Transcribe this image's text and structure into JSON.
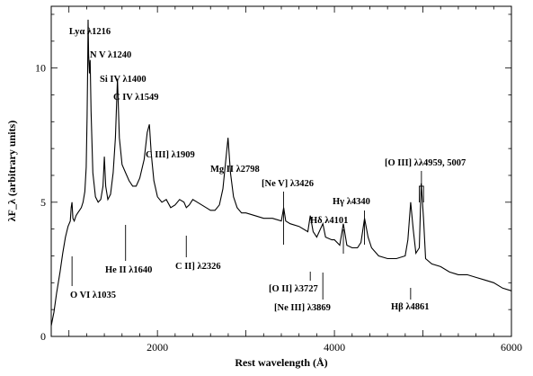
{
  "chart_data": {
    "type": "line",
    "title": "",
    "xlabel": "Rest wavelength (Å)",
    "ylabel": "λF_λ (arbitrary units)",
    "xlim": [
      800,
      6000
    ],
    "ylim": [
      0,
      12.3
    ],
    "x_ticks": [
      2000,
      4000,
      6000
    ],
    "y_ticks": [
      0,
      5,
      10
    ],
    "grid": false,
    "legend": "none",
    "colors": {
      "line": "#000000",
      "axis": "#000000",
      "background": "#ffffff"
    },
    "series": [
      {
        "x": [
          800,
          830,
          860,
          900,
          930,
          960,
          990,
          1015,
          1025,
          1035,
          1045,
          1060,
          1080,
          1100,
          1120,
          1140,
          1160,
          1180,
          1195,
          1205,
          1212,
          1216,
          1222,
          1232,
          1240,
          1250,
          1270,
          1300,
          1330,
          1360,
          1385,
          1400,
          1415,
          1440,
          1470,
          1500,
          1525,
          1549,
          1570,
          1600,
          1640,
          1680,
          1720,
          1760,
          1800,
          1850,
          1885,
          1909,
          1930,
          1960,
          2000,
          2050,
          2100,
          2150,
          2200,
          2250,
          2300,
          2326,
          2360,
          2400,
          2450,
          2500,
          2550,
          2600,
          2650,
          2700,
          2740,
          2770,
          2798,
          2825,
          2860,
          2900,
          2950,
          3000,
          3100,
          3200,
          3300,
          3400,
          3426,
          3450,
          3500,
          3600,
          3700,
          3727,
          3760,
          3800,
          3869,
          3900,
          3970,
          4000,
          4060,
          4101,
          4140,
          4200,
          4260,
          4300,
          4340,
          4380,
          4420,
          4500,
          4600,
          4700,
          4800,
          4830,
          4861,
          4890,
          4920,
          4959,
          4980,
          5007,
          5030,
          5100,
          5200,
          5300,
          5400,
          5500,
          5600,
          5700,
          5800,
          5900,
          6000
        ],
        "y": [
          0.4,
          0.9,
          1.6,
          2.4,
          3.1,
          3.7,
          4.1,
          4.3,
          4.8,
          5.0,
          4.4,
          4.3,
          4.5,
          4.6,
          4.7,
          4.8,
          5.0,
          5.4,
          6.3,
          8.2,
          10.2,
          11.8,
          10.5,
          9.8,
          10.3,
          8.4,
          6.1,
          5.2,
          5.0,
          5.1,
          5.6,
          6.7,
          5.6,
          5.1,
          5.3,
          6.1,
          7.4,
          9.6,
          7.4,
          6.4,
          6.1,
          5.8,
          5.6,
          5.6,
          5.9,
          6.6,
          7.6,
          7.9,
          6.8,
          5.8,
          5.2,
          5.0,
          5.1,
          4.8,
          4.9,
          5.1,
          5.0,
          4.8,
          4.9,
          5.1,
          5.0,
          4.9,
          4.8,
          4.7,
          4.7,
          4.9,
          5.5,
          6.5,
          7.4,
          6.1,
          5.2,
          4.8,
          4.6,
          4.6,
          4.5,
          4.4,
          4.4,
          4.3,
          4.8,
          4.3,
          4.2,
          4.1,
          3.9,
          4.5,
          3.9,
          3.7,
          4.2,
          3.7,
          3.6,
          3.6,
          3.4,
          4.2,
          3.4,
          3.3,
          3.3,
          3.5,
          4.4,
          3.7,
          3.3,
          3.0,
          2.9,
          2.9,
          3.0,
          3.6,
          5.0,
          4.0,
          3.1,
          3.3,
          5.7,
          4.4,
          2.9,
          2.7,
          2.6,
          2.4,
          2.3,
          2.3,
          2.2,
          2.1,
          2.0,
          1.8,
          1.7
        ]
      }
    ],
    "annotations": [
      {
        "text": "Lyα λ1216",
        "x": 1216
      },
      {
        "text": "N V λ1240",
        "x": 1240
      },
      {
        "text": "Si IV λ1400",
        "x": 1400
      },
      {
        "text": "C IV λ1549",
        "x": 1549
      },
      {
        "text": "C III] λ1909",
        "x": 1909
      },
      {
        "text": "Mg II λ2798",
        "x": 2798
      },
      {
        "text": "[Ne V] λ3426",
        "x": 3426
      },
      {
        "text": "Hδ λ4101",
        "x": 4101
      },
      {
        "text": "Hγ λ4340",
        "x": 4340
      },
      {
        "text": "[O III] λλ4959, 5007",
        "x": 4980
      },
      {
        "text": "O VI λ1035",
        "x": 1035
      },
      {
        "text": "He II λ1640",
        "x": 1640
      },
      {
        "text": "C II] λ2326",
        "x": 2326
      },
      {
        "text": "[O II] λ3727",
        "x": 3727
      },
      {
        "text": "[Ne III] λ3869",
        "x": 3869
      },
      {
        "text": "Hβ λ4861",
        "x": 4861
      }
    ]
  }
}
